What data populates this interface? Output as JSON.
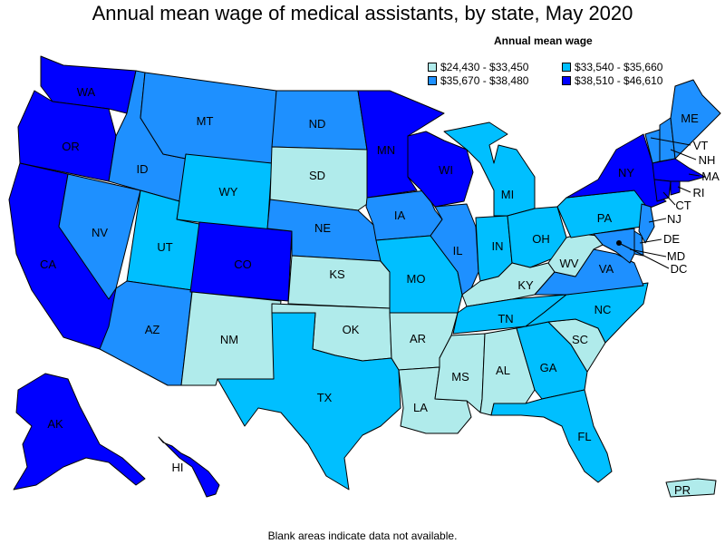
{
  "title": "Annual mean wage of medical assistants, by state, May 2020",
  "legend": {
    "title": "Annual mean wage",
    "items": [
      {
        "label": "$24,430 - $33,450",
        "color": "#b0ebeb"
      },
      {
        "label": "$33,540 - $35,660",
        "color": "#00bfff"
      },
      {
        "label": "$35,670 - $38,480",
        "color": "#1e90ff"
      },
      {
        "label": "$38,510 - $46,610",
        "color": "#0000ff"
      }
    ]
  },
  "footnote": "Blank areas indicate data not available.",
  "states": {
    "WA": {
      "label": "WA",
      "tier": 3
    },
    "OR": {
      "label": "OR",
      "tier": 3
    },
    "CA": {
      "label": "CA",
      "tier": 3
    },
    "NV": {
      "label": "NV",
      "tier": 2
    },
    "ID": {
      "label": "ID",
      "tier": 2
    },
    "MT": {
      "label": "MT",
      "tier": 2
    },
    "WY": {
      "label": "WY",
      "tier": 1
    },
    "UT": {
      "label": "UT",
      "tier": 1
    },
    "AZ": {
      "label": "AZ",
      "tier": 2
    },
    "CO": {
      "label": "CO",
      "tier": 3
    },
    "NM": {
      "label": "NM",
      "tier": 0
    },
    "ND": {
      "label": "ND",
      "tier": 2
    },
    "SD": {
      "label": "SD",
      "tier": 0
    },
    "NE": {
      "label": "NE",
      "tier": 2
    },
    "KS": {
      "label": "KS",
      "tier": 0
    },
    "OK": {
      "label": "OK",
      "tier": 0
    },
    "TX": {
      "label": "TX",
      "tier": 1
    },
    "MN": {
      "label": "MN",
      "tier": 3
    },
    "IA": {
      "label": "IA",
      "tier": 2
    },
    "MO": {
      "label": "MO",
      "tier": 1
    },
    "AR": {
      "label": "AR",
      "tier": 0
    },
    "LA": {
      "label": "LA",
      "tier": 0
    },
    "WI": {
      "label": "WI",
      "tier": 3
    },
    "IL": {
      "label": "IL",
      "tier": 2
    },
    "MI": {
      "label": "MI",
      "tier": 1
    },
    "IN": {
      "label": "IN",
      "tier": 1
    },
    "OH": {
      "label": "OH",
      "tier": 1
    },
    "KY": {
      "label": "KY",
      "tier": 0
    },
    "TN": {
      "label": "TN",
      "tier": 1
    },
    "MS": {
      "label": "MS",
      "tier": 0
    },
    "AL": {
      "label": "AL",
      "tier": 0
    },
    "GA": {
      "label": "GA",
      "tier": 1
    },
    "FL": {
      "label": "FL",
      "tier": 1
    },
    "SC": {
      "label": "SC",
      "tier": 0
    },
    "NC": {
      "label": "NC",
      "tier": 1
    },
    "VA": {
      "label": "VA",
      "tier": 2
    },
    "WV": {
      "label": "WV",
      "tier": 0
    },
    "PA": {
      "label": "PA",
      "tier": 1
    },
    "NY": {
      "label": "NY",
      "tier": 3
    },
    "VT": {
      "label": "VT",
      "tier": 2
    },
    "NH": {
      "label": "NH",
      "tier": 2
    },
    "ME": {
      "label": "ME",
      "tier": 2
    },
    "MA": {
      "label": "MA",
      "tier": 3
    },
    "RI": {
      "label": "RI",
      "tier": 3
    },
    "CT": {
      "label": "CT",
      "tier": 3
    },
    "NJ": {
      "label": "NJ",
      "tier": 2
    },
    "DE": {
      "label": "DE",
      "tier": 2
    },
    "MD": {
      "label": "MD",
      "tier": 2
    },
    "DC": {
      "label": "DC",
      "tier": 3
    },
    "AK": {
      "label": "AK",
      "tier": 3
    },
    "HI": {
      "label": "HI",
      "tier": 3
    },
    "PR": {
      "label": "PR",
      "tier": 0
    }
  }
}
